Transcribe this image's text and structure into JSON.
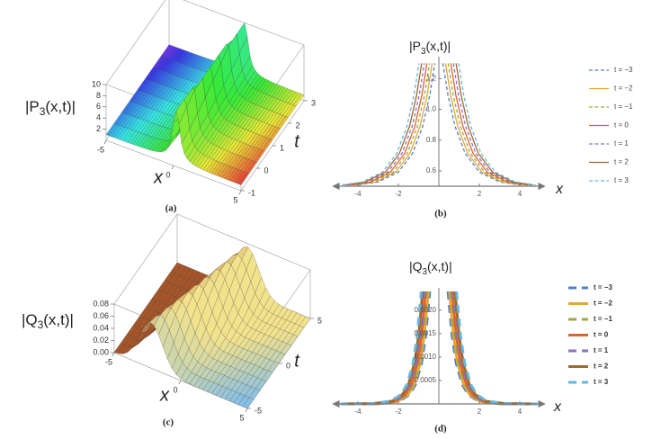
{
  "chart_data": [
    {
      "type": "surface3d",
      "title": {
        "main": "|P",
        "sub": "3",
        "rest": "(x,t)|"
      },
      "xlabel": "x",
      "ylabel": "t",
      "xlim": [
        -5,
        5
      ],
      "ylim": [
        -1,
        3
      ],
      "zlim": [
        0,
        10
      ],
      "xticks": [
        -5,
        0,
        5
      ],
      "yticks": [
        -1,
        0,
        1,
        2,
        3
      ],
      "zticks": [
        2,
        4,
        6,
        8,
        10
      ],
      "caption": "(a)"
    },
    {
      "type": "line",
      "title": {
        "main": "|P",
        "sub": "3",
        "rest": "(x,t)|"
      },
      "xlabel": "x",
      "xlim": [
        -5.2,
        5.2
      ],
      "ylim": [
        0.5,
        1.32
      ],
      "xticks": [
        -4,
        -2,
        2,
        4
      ],
      "yticks": [
        0.6,
        0.8,
        {
          "value": 1,
          "label": "1.0"
        },
        1.2
      ],
      "caption": "(b)",
      "legend": "right",
      "series": [
        {
          "name": "t = −3",
          "color": "#4f81c7",
          "dash": true,
          "x": [
            -4,
            -3,
            -2,
            -1.3,
            -0.8,
            -0.45,
            -0.2,
            null,
            0.2,
            0.45,
            0.8,
            1.3,
            2,
            3,
            4
          ],
          "values": [
            0.508,
            0.528,
            0.592,
            0.714,
            0.89,
            1.093,
            1.3,
            null,
            1.3,
            1.093,
            0.89,
            0.714,
            0.592,
            0.528,
            0.508
          ]
        },
        {
          "name": "t = −2",
          "color": "#e3a73b",
          "dash": false,
          "x": [
            -4.13,
            -3.13,
            -2.13,
            -1.43,
            -0.93,
            -0.58,
            -0.33,
            null,
            0.33,
            0.58,
            0.93,
            1.43,
            2.13,
            3.13,
            4.13
          ],
          "values": [
            0.508,
            0.528,
            0.592,
            0.714,
            0.89,
            1.093,
            1.3,
            null,
            1.3,
            1.093,
            0.89,
            0.714,
            0.592,
            0.528,
            0.508
          ]
        },
        {
          "name": "t = −1",
          "color": "#9fa83a",
          "dash": true,
          "x": [
            -4.26,
            -3.26,
            -2.26,
            -1.56,
            -1.06,
            -0.71,
            -0.46,
            null,
            0.46,
            0.71,
            1.06,
            1.56,
            2.26,
            3.26,
            4.26
          ],
          "values": [
            0.508,
            0.528,
            0.592,
            0.714,
            0.89,
            1.093,
            1.3,
            null,
            1.3,
            1.093,
            0.89,
            0.714,
            0.592,
            0.528,
            0.508
          ]
        },
        {
          "name": "t = 0",
          "color": "#e0632e",
          "dash": false,
          "x": [
            -4.39,
            -3.39,
            -2.39,
            -1.69,
            -1.19,
            -0.84,
            -0.59,
            null,
            0.59,
            0.84,
            1.19,
            1.69,
            2.39,
            3.39,
            4.39
          ],
          "values": [
            0.508,
            0.528,
            0.592,
            0.714,
            0.89,
            1.093,
            1.3,
            null,
            1.3,
            1.093,
            0.89,
            0.714,
            0.592,
            0.528,
            0.508
          ]
        },
        {
          "name": "t = 1",
          "color": "#8a72c4",
          "dash": true,
          "x": [
            -4.52,
            -3.52,
            -2.52,
            -1.82,
            -1.32,
            -0.97,
            -0.72,
            null,
            0.72,
            0.97,
            1.32,
            1.82,
            2.52,
            3.52,
            4.52
          ],
          "values": [
            0.508,
            0.528,
            0.592,
            0.714,
            0.89,
            1.093,
            1.3,
            null,
            1.3,
            1.093,
            0.89,
            0.714,
            0.592,
            0.528,
            0.508
          ]
        },
        {
          "name": "t = 2",
          "color": "#a0692d",
          "dash": false,
          "x": [
            -4.65,
            -3.65,
            -2.65,
            -1.95,
            -1.45,
            -1.1,
            -0.85,
            null,
            0.85,
            1.1,
            1.45,
            1.95,
            2.65,
            3.65,
            4.65
          ],
          "values": [
            0.508,
            0.528,
            0.592,
            0.714,
            0.89,
            1.093,
            1.3,
            null,
            1.3,
            1.093,
            0.89,
            0.714,
            0.592,
            0.528,
            0.508
          ]
        },
        {
          "name": "t = 3",
          "color": "#67b6dc",
          "dash": true,
          "x": [
            -4.78,
            -3.78,
            -2.78,
            -2.08,
            -1.58,
            -1.23,
            -0.98,
            null,
            0.98,
            1.23,
            1.58,
            2.08,
            2.78,
            3.78,
            4.78
          ],
          "values": [
            0.508,
            0.528,
            0.592,
            0.714,
            0.89,
            1.093,
            1.3,
            null,
            1.3,
            1.093,
            0.89,
            0.714,
            0.592,
            0.528,
            0.508
          ]
        }
      ]
    },
    {
      "type": "surface3d",
      "title": {
        "main": "|Q",
        "sub": "3",
        "rest": "(x,t)|"
      },
      "xlabel": "x",
      "ylabel": "t",
      "xlim": [
        -5,
        5
      ],
      "ylim": [
        -5,
        5
      ],
      "zlim": [
        0,
        0.08
      ],
      "xticks": [
        -5,
        0,
        5
      ],
      "yticks": [
        -5,
        0,
        5
      ],
      "zticks": [
        {
          "value": 0,
          "label": "0.00"
        },
        {
          "value": 0.02,
          "label": "0.02"
        },
        {
          "value": 0.04,
          "label": "0.04"
        },
        {
          "value": 0.06,
          "label": "0.06"
        },
        {
          "value": 0.08,
          "label": "0.08"
        }
      ],
      "caption": "(c)"
    },
    {
      "type": "line",
      "title": {
        "main": "|Q",
        "sub": "3",
        "rest": "(x,t)|"
      },
      "xlabel": "x",
      "xlim": [
        -5.2,
        5.2
      ],
      "ylim": [
        0,
        0.0024
      ],
      "xticks": [
        -4,
        -2,
        2,
        4
      ],
      "yticks": [
        {
          "value": 0.0005,
          "label": "0.0005"
        },
        {
          "value": 0.001,
          "label": "0.0010"
        },
        {
          "value": 0.0015,
          "label": "0.0015"
        },
        {
          "value": 0.002,
          "label": "0.0020"
        }
      ],
      "caption": "(d)",
      "legend": "right",
      "series": [
        {
          "name": "t = −3",
          "color": "#4f81c7",
          "dash": true,
          "x": [
            -4.45,
            -2.95,
            -1.95,
            -1.45,
            -1.15,
            -0.85,
            -0.65,
            -0.45,
            null,
            0.45,
            0.65,
            0.85,
            1.15,
            1.45,
            1.95,
            2.95,
            4.45
          ],
          "values": [
            0,
            5e-06,
            6e-05,
            0.0002,
            0.00042,
            0.00088,
            0.00146,
            0.0024,
            null,
            0.0024,
            0.00146,
            0.00088,
            0.00042,
            0.0002,
            6e-05,
            5e-06,
            0
          ]
        },
        {
          "name": "t = −2",
          "color": "#e3a73b",
          "dash": false,
          "x": [
            -4.52,
            -3.02,
            -2.02,
            -1.52,
            -1.22,
            -0.92,
            -0.72,
            -0.52,
            null,
            0.52,
            0.72,
            0.92,
            1.22,
            1.52,
            2.02,
            3.02,
            4.52
          ],
          "values": [
            0,
            5e-06,
            6e-05,
            0.0002,
            0.00042,
            0.00088,
            0.00146,
            0.0024,
            null,
            0.0024,
            0.00146,
            0.00088,
            0.00042,
            0.0002,
            6e-05,
            5e-06,
            0
          ]
        },
        {
          "name": "t = −1",
          "color": "#9fa83a",
          "dash": true,
          "x": [
            -4.59,
            -3.09,
            -2.09,
            -1.59,
            -1.29,
            -0.99,
            -0.79,
            -0.59,
            null,
            0.59,
            0.79,
            0.99,
            1.29,
            1.59,
            2.09,
            3.09,
            4.59
          ],
          "values": [
            0,
            5e-06,
            6e-05,
            0.0002,
            0.00042,
            0.00088,
            0.00146,
            0.0024,
            null,
            0.0024,
            0.00146,
            0.00088,
            0.00042,
            0.0002,
            6e-05,
            5e-06,
            0
          ]
        },
        {
          "name": "t = 0",
          "color": "#e0632e",
          "dash": false,
          "x": [
            -4.66,
            -3.16,
            -2.16,
            -1.66,
            -1.36,
            -1.06,
            -0.86,
            -0.66,
            null,
            0.66,
            0.86,
            1.06,
            1.36,
            1.66,
            2.16,
            3.16,
            4.66
          ],
          "values": [
            0,
            5e-06,
            6e-05,
            0.0002,
            0.00042,
            0.00088,
            0.00146,
            0.0024,
            null,
            0.0024,
            0.00146,
            0.00088,
            0.00042,
            0.0002,
            6e-05,
            5e-06,
            0
          ]
        },
        {
          "name": "t = 1",
          "color": "#8a72c4",
          "dash": true,
          "x": [
            -4.73,
            -3.23,
            -2.23,
            -1.73,
            -1.43,
            -1.13,
            -0.93,
            -0.73,
            null,
            0.73,
            0.93,
            1.13,
            1.43,
            1.73,
            2.23,
            3.23,
            4.73
          ],
          "values": [
            0,
            5e-06,
            6e-05,
            0.0002,
            0.00042,
            0.00088,
            0.00146,
            0.0024,
            null,
            0.0024,
            0.00146,
            0.00088,
            0.00042,
            0.0002,
            6e-05,
            5e-06,
            0
          ]
        },
        {
          "name": "t = 2",
          "color": "#a0692d",
          "dash": false,
          "x": [
            -4.8,
            -3.3,
            -2.3,
            -1.8,
            -1.5,
            -1.2,
            -1,
            -0.8,
            null,
            0.8,
            1,
            1.2,
            1.5,
            1.8,
            2.3,
            3.3,
            4.8
          ],
          "values": [
            0,
            5e-06,
            6e-05,
            0.0002,
            0.00042,
            0.00088,
            0.00146,
            0.0024,
            null,
            0.0024,
            0.00146,
            0.00088,
            0.00042,
            0.0002,
            6e-05,
            5e-06,
            0
          ]
        },
        {
          "name": "t = 3",
          "color": "#67b6dc",
          "dash": true,
          "x": [
            -4.87,
            -3.37,
            -2.37,
            -1.87,
            -1.57,
            -1.27,
            -1.07,
            -0.87,
            null,
            0.87,
            1.07,
            1.27,
            1.57,
            1.87,
            2.37,
            3.37,
            4.87
          ],
          "values": [
            0,
            5e-06,
            6e-05,
            0.0002,
            0.00042,
            0.00088,
            0.00146,
            0.0024,
            null,
            0.0024,
            0.00146,
            0.00088,
            0.00042,
            0.0002,
            6e-05,
            5e-06,
            0
          ]
        }
      ]
    }
  ]
}
